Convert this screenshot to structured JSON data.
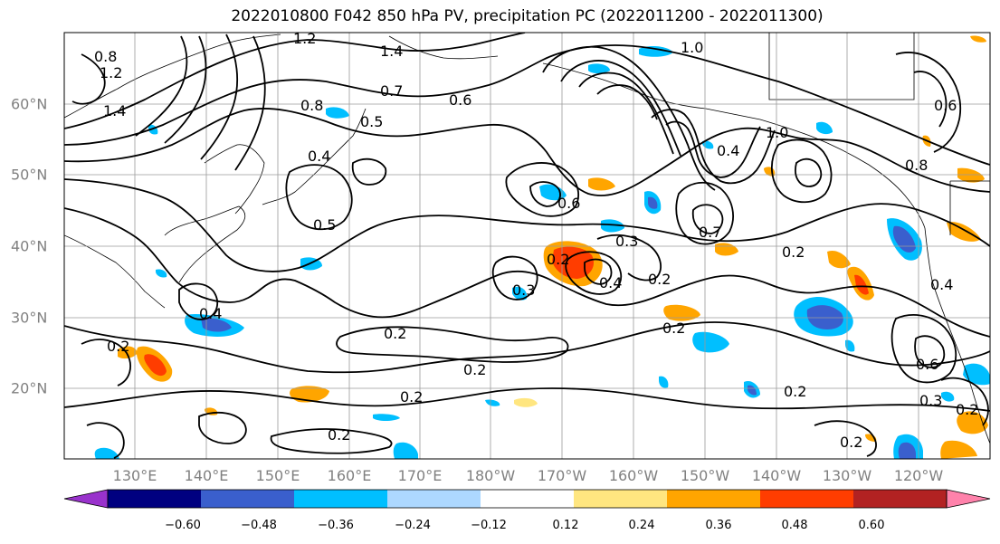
{
  "title": "2022010800 F042 850 hPa PV, precipitation PC (2022011200 - 2022011300)",
  "lat_labels": [
    "60°N",
    "50°N",
    "40°N",
    "30°N",
    "20°N"
  ],
  "lon_labels": [
    "130°E",
    "140°E",
    "150°E",
    "160°E",
    "170°E",
    "180°W",
    "170°W",
    "160°W",
    "150°W",
    "140°W",
    "130°W",
    "120°W"
  ],
  "colorbar": {
    "ticks": [
      "−0.60",
      "−0.48",
      "−0.36",
      "−0.24",
      "−0.12",
      "0.12",
      "0.24",
      "0.36",
      "0.48",
      "0.60"
    ],
    "colors": [
      "#9932cc",
      "#000080",
      "#3a5fcd",
      "#00bfff",
      "#add8ff",
      "#ffffff",
      "#ffe680",
      "#ffa500",
      "#ff3d00",
      "#b22222",
      "#ff82ab"
    ]
  },
  "contour_labels": [
    "0.8",
    "1.2",
    "1.4",
    "1.2",
    "1.4",
    "0.8",
    "0.7",
    "0.6",
    "0.5",
    "0.4",
    "0.5",
    "0.6",
    "1.0",
    "0.4",
    "1.0",
    "0.7",
    "0.8",
    "0.6",
    "0.3",
    "0.2",
    "0.4",
    "0.2",
    "0.3",
    "0.2",
    "0.4",
    "0.2",
    "0.2",
    "0.2",
    "0.2",
    "0.2",
    "0.2",
    "0.3",
    "0.2",
    "0.2",
    "0.4",
    "0.6",
    "0.2"
  ]
}
